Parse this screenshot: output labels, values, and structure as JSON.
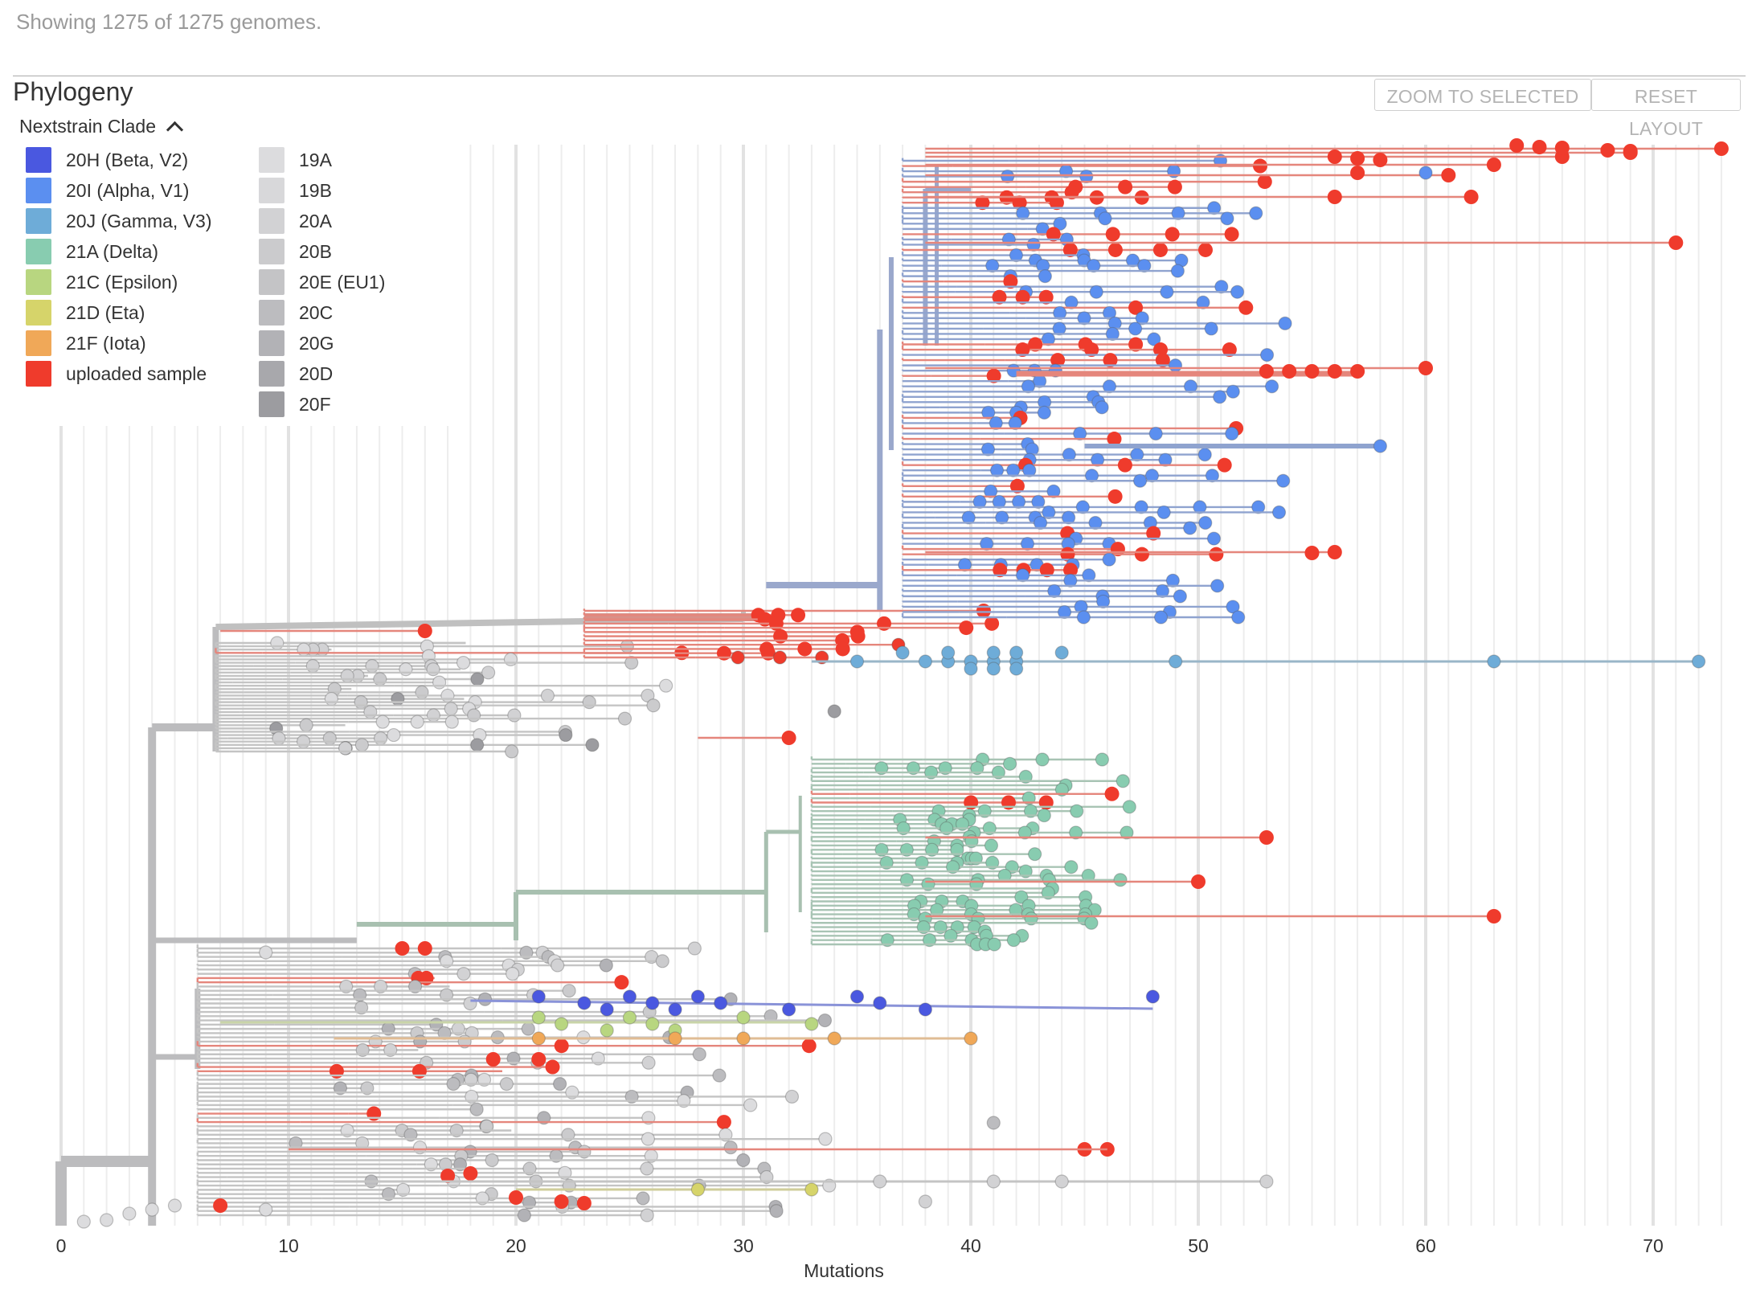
{
  "status_text": "Showing 1275 of 1275 genomes.",
  "panel_title": "Phylogeny",
  "buttons": {
    "zoom_to_selected": "ZOOM TO SELECTED",
    "reset_layout": "RESET LAYOUT"
  },
  "legend": {
    "title": "Nextstrain Clade",
    "toggle_icon": "chevron-up-icon",
    "items": [
      {
        "label": "20H (Beta, V2)",
        "color": "#4a58e0"
      },
      {
        "label": "20I (Alpha, V1)",
        "color": "#5b8ff0"
      },
      {
        "label": "20J (Gamma, V3)",
        "color": "#6eacd8"
      },
      {
        "label": "21A (Delta)",
        "color": "#88ccb0"
      },
      {
        "label": "21C (Epsilon)",
        "color": "#b8d680"
      },
      {
        "label": "21D (Eta)",
        "color": "#d6d46a"
      },
      {
        "label": "21F (Iota)",
        "color": "#f0a858"
      },
      {
        "label": "uploaded sample",
        "color": "#ef3b2c"
      },
      {
        "label": "19A",
        "color": "#dcdcde"
      },
      {
        "label": "19B",
        "color": "#d8d8da"
      },
      {
        "label": "20A",
        "color": "#d2d2d4"
      },
      {
        "label": "20B",
        "color": "#cbcbcd"
      },
      {
        "label": "20E (EU1)",
        "color": "#c4c4c6"
      },
      {
        "label": "20C",
        "color": "#bcbcbf"
      },
      {
        "label": "20G",
        "color": "#b2b2b6"
      },
      {
        "label": "20D",
        "color": "#a8a8ac"
      },
      {
        "label": "20F",
        "color": "#9c9ca0"
      }
    ]
  },
  "axis": {
    "label": "Mutations",
    "ticks": [
      "0",
      "10",
      "20",
      "30",
      "40",
      "50",
      "60",
      "70"
    ]
  },
  "chart_data": {
    "type": "scatter",
    "chart_kind": "phylogenetic tree",
    "x_axis": {
      "label": "Mutations",
      "range": [
        0,
        73
      ],
      "major_ticks": [
        0,
        10,
        20,
        30,
        40,
        50,
        60,
        70
      ],
      "grid": true
    },
    "genomes_shown": 1275,
    "genomes_total": 1275,
    "clades": [
      {
        "name": "20I (Alpha, V1)",
        "color": "#5b8ff0",
        "mutation_range": [
          36,
          58
        ]
      },
      {
        "name": "20J (Gamma, V3)",
        "color": "#6eacd8",
        "mutation_range": [
          35,
          72
        ]
      },
      {
        "name": "21A (Delta)",
        "color": "#88ccb0",
        "mutation_range": [
          33,
          49
        ]
      },
      {
        "name": "20H (Beta, V2)",
        "color": "#4a58e0",
        "mutation_range": [
          21,
          48
        ]
      },
      {
        "name": "21C (Epsilon)",
        "color": "#b8d680",
        "mutation_range": [
          21,
          33
        ]
      },
      {
        "name": "21D (Eta)",
        "color": "#d6d46a",
        "mutation_range": [
          28,
          33
        ]
      },
      {
        "name": "21F (Iota)",
        "color": "#f0a858",
        "mutation_range": [
          21,
          40
        ]
      },
      {
        "name": "uploaded sample",
        "color": "#ef3b2c",
        "mutation_range": [
          7,
          73
        ]
      }
    ]
  }
}
